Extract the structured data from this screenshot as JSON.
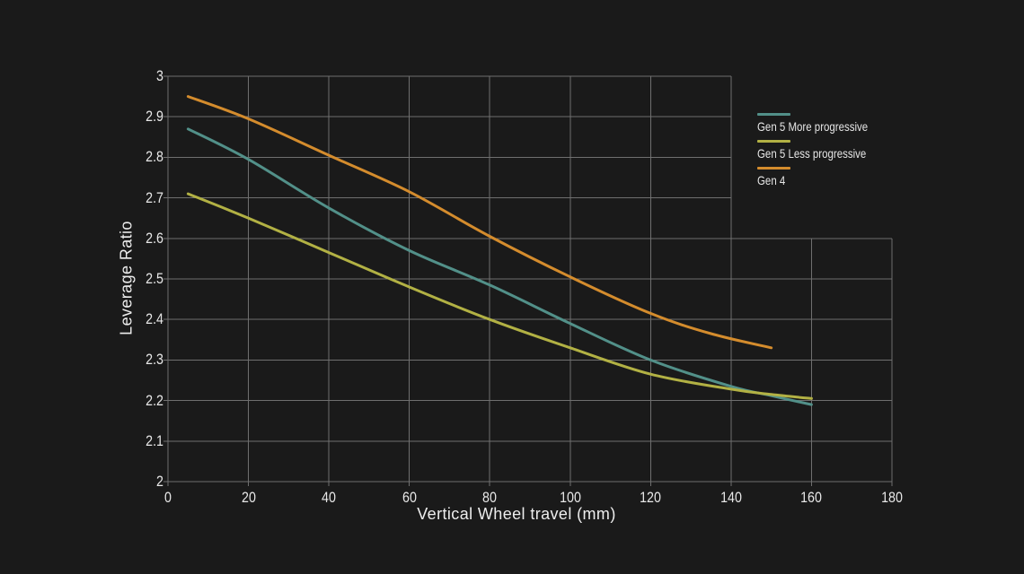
{
  "colors": {
    "background": "#1a1a1a",
    "grid": "#6f6f6f",
    "text": "#e8e8e8"
  },
  "chart_data": {
    "type": "line",
    "title": "",
    "xlabel": "Vertical Wheel travel (mm)",
    "ylabel": "Leverage Ratio",
    "xlim": [
      0,
      180
    ],
    "ylim": [
      2,
      3
    ],
    "xticks": [
      0,
      20,
      40,
      60,
      80,
      100,
      120,
      140,
      160,
      180
    ],
    "yticks": [
      2,
      2.1,
      2.2,
      2.3,
      2.4,
      2.5,
      2.6,
      2.7,
      2.8,
      2.9,
      3
    ],
    "grid": true,
    "grid_notch": {
      "x_min": 140,
      "y_min": 2.6
    },
    "legend_position": "right",
    "series": [
      {
        "name": "Gen 5 More progressive",
        "color": "#529089",
        "points": [
          [
            5,
            2.87
          ],
          [
            20,
            2.795
          ],
          [
            40,
            2.675
          ],
          [
            60,
            2.57
          ],
          [
            80,
            2.485
          ],
          [
            100,
            2.39
          ],
          [
            120,
            2.3
          ],
          [
            140,
            2.235
          ],
          [
            150,
            2.212
          ],
          [
            160,
            2.19
          ]
        ]
      },
      {
        "name": "Gen 5 Less progressive",
        "color": "#b2b144",
        "points": [
          [
            5,
            2.71
          ],
          [
            20,
            2.65
          ],
          [
            40,
            2.565
          ],
          [
            60,
            2.48
          ],
          [
            80,
            2.4
          ],
          [
            100,
            2.33
          ],
          [
            120,
            2.265
          ],
          [
            140,
            2.228
          ],
          [
            150,
            2.215
          ],
          [
            160,
            2.205
          ]
        ]
      },
      {
        "name": "Gen 4",
        "color": "#d48c2d",
        "points": [
          [
            5,
            2.95
          ],
          [
            20,
            2.895
          ],
          [
            40,
            2.805
          ],
          [
            60,
            2.715
          ],
          [
            80,
            2.605
          ],
          [
            100,
            2.505
          ],
          [
            120,
            2.415
          ],
          [
            135,
            2.365
          ],
          [
            150,
            2.33
          ]
        ]
      }
    ]
  }
}
